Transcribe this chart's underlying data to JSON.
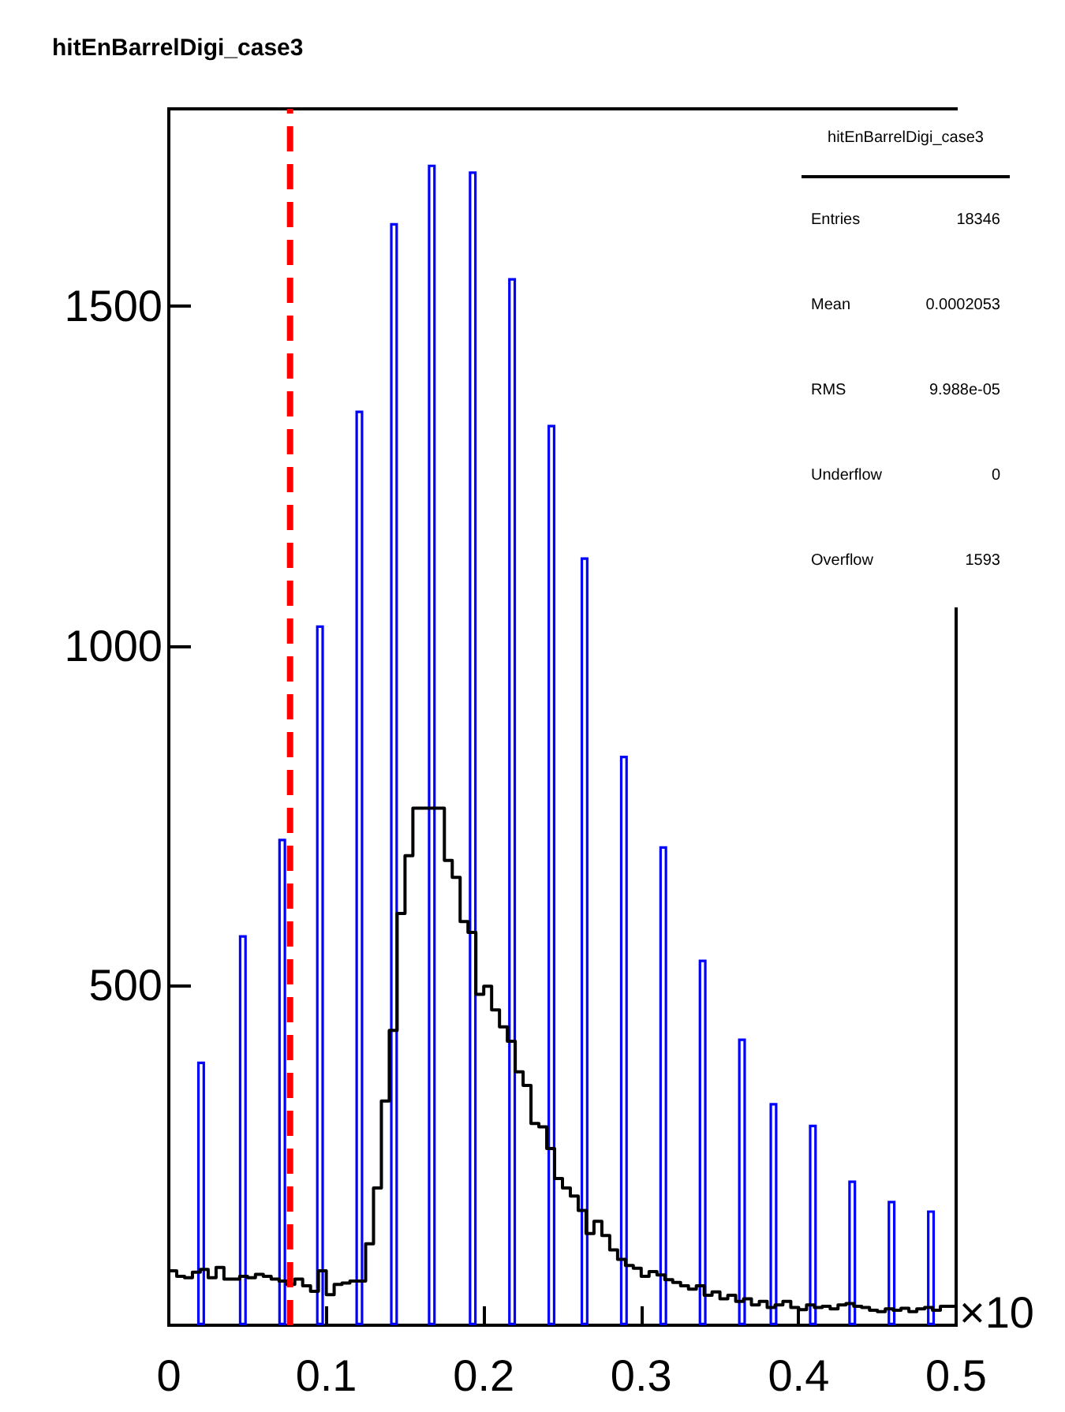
{
  "chart_data": {
    "type": "histogram",
    "title": "hitEnBarrelDigi_case3",
    "xlabel": "×10",
    "annotations": [
      "hitEnBarrelDigi_case3",
      "Entries",
      "18346",
      "Mean",
      "0.0002053",
      "RMS",
      "9.988e-05",
      "Underflow",
      "0",
      "Overflow",
      "1593"
    ],
    "xlim": [
      0,
      0.5
    ],
    "xticks": [
      0,
      0.1,
      0.2,
      0.3,
      0.4,
      0.5
    ],
    "ylim": [
      0,
      1790
    ],
    "yticks": [
      500,
      1000,
      1500
    ],
    "grid": false,
    "ref_lines": [
      {
        "axis": "x",
        "value": 0.077,
        "color": "#ff0000",
        "line_style": "dashed"
      }
    ],
    "series": [
      {
        "type": "bar",
        "color": "#0000ff",
        "x": [
          0.0205,
          0.047,
          0.072,
          0.096,
          0.121,
          0.143,
          0.167,
          0.193,
          0.218,
          0.243,
          0.264,
          0.289,
          0.314,
          0.339,
          0.364,
          0.384,
          0.409,
          0.434,
          0.459,
          0.484
        ],
        "values": [
          388,
          574,
          716,
          1030,
          1346,
          1622,
          1708,
          1698,
          1541,
          1325,
          1130,
          838,
          705,
          538,
          422,
          327,
          295,
          213,
          183,
          169
        ]
      },
      {
        "color": "#000000",
        "bins": [
          0,
          0.005,
          0.01,
          0.015,
          0.02,
          0.025,
          0.03,
          0.035,
          0.04,
          0.045,
          0.05,
          0.055,
          0.06,
          0.065,
          0.07,
          0.075,
          0.08,
          0.085,
          0.09,
          0.095,
          0.1,
          0.105,
          0.11,
          0.115,
          0.12,
          0.125,
          0.13,
          0.135,
          0.14,
          0.145,
          0.15,
          0.155,
          0.16,
          0.165,
          0.17,
          0.175,
          0.18,
          0.185,
          0.19,
          0.195,
          0.2,
          0.205,
          0.21,
          0.215,
          0.22,
          0.225,
          0.23,
          0.235,
          0.24,
          0.245,
          0.25,
          0.255,
          0.26,
          0.265,
          0.27,
          0.275,
          0.28,
          0.285,
          0.29,
          0.295,
          0.3,
          0.305,
          0.31,
          0.315,
          0.32,
          0.325,
          0.33,
          0.335,
          0.34,
          0.345,
          0.35,
          0.355,
          0.36,
          0.365,
          0.37,
          0.375,
          0.38,
          0.385,
          0.39,
          0.395,
          0.4,
          0.405,
          0.41,
          0.415,
          0.42,
          0.425,
          0.43,
          0.435,
          0.44,
          0.445,
          0.45,
          0.455,
          0.46,
          0.465,
          0.47,
          0.475,
          0.48,
          0.485,
          0.49,
          0.495,
          0.5
        ],
        "values": [
          80,
          72,
          70,
          78,
          82,
          70,
          85,
          68,
          68,
          72,
          70,
          75,
          72,
          68,
          65,
          60,
          68,
          58,
          50,
          80,
          45,
          60,
          62,
          65,
          65,
          120,
          202,
          330,
          434,
          606,
          691,
          761,
          761,
          761,
          761,
          684,
          659,
          594,
          578,
          487,
          499,
          464,
          439,
          418,
          373,
          353,
          297,
          292,
          260,
          216,
          202,
          190,
          169,
          135,
          153,
          132,
          111,
          97,
          88,
          84,
          72,
          79,
          74,
          67,
          63,
          58,
          53,
          58,
          44,
          49,
          39,
          44,
          35,
          39,
          30,
          35,
          26,
          30,
          35,
          26,
          23,
          30,
          26,
          28,
          24,
          30,
          32,
          28,
          26,
          22,
          20,
          24,
          22,
          25,
          20,
          24,
          26,
          22,
          28,
          28
        ]
      }
    ]
  }
}
